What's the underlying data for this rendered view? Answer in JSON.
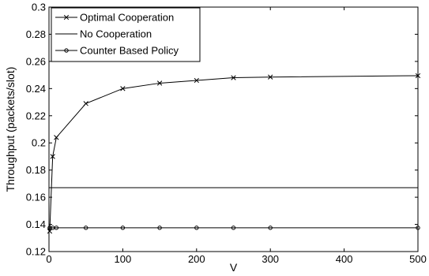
{
  "chart_data": {
    "type": "line",
    "title": "",
    "xlabel": "V",
    "ylabel": "Throughput (packets/slot)",
    "xlim": [
      0,
      500
    ],
    "ylim": [
      0.12,
      0.3
    ],
    "xticks": [
      0,
      100,
      200,
      300,
      400,
      500
    ],
    "xtick_labels": [
      "0",
      "100",
      "200",
      "300",
      "400",
      "500"
    ],
    "yticks": [
      0.12,
      0.14,
      0.16,
      0.18,
      0.2,
      0.22,
      0.24,
      0.26,
      0.28,
      0.3
    ],
    "ytick_labels": [
      "0.12",
      "0.14",
      "0.16",
      "0.18",
      "0.2",
      "0.22",
      "0.24",
      "0.26",
      "0.28",
      "0.3"
    ],
    "grid": false,
    "legend_position": "top-left",
    "series": [
      {
        "name": "Optimal Cooperation",
        "marker": "x",
        "x": [
          1,
          5,
          10,
          50,
          100,
          150,
          200,
          250,
          300,
          500
        ],
        "y": [
          0.135,
          0.19,
          0.204,
          0.229,
          0.24,
          0.244,
          0.246,
          0.248,
          0.2485,
          0.2495
        ]
      },
      {
        "name": "No Cooperation",
        "marker": "none",
        "x": [
          0,
          500
        ],
        "y": [
          0.167,
          0.167
        ]
      },
      {
        "name": "Counter Based Policy",
        "marker": "o",
        "x": [
          1,
          5,
          10,
          50,
          100,
          150,
          200,
          250,
          300,
          500
        ],
        "y": [
          0.1375,
          0.1375,
          0.1375,
          0.1375,
          0.1375,
          0.1375,
          0.1375,
          0.1375,
          0.1375,
          0.1375
        ]
      }
    ]
  }
}
